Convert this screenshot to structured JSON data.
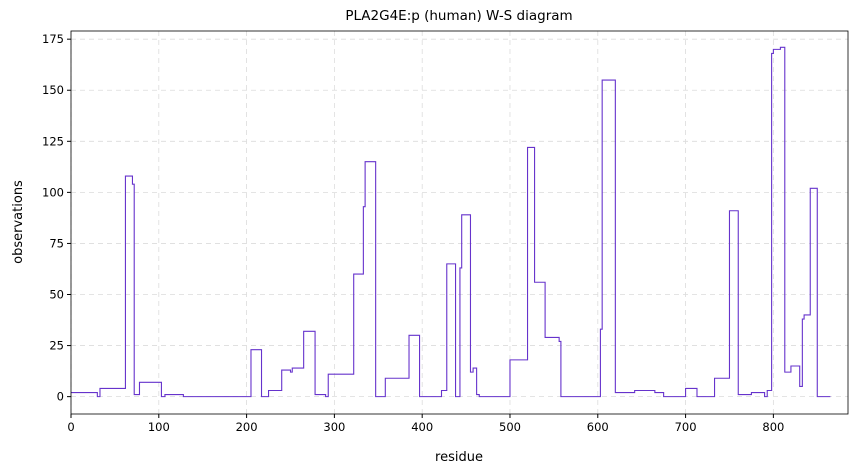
{
  "chart_data": {
    "type": "line",
    "title": "PLA2G4E:p (human) W-S diagram",
    "x_label": "residue",
    "y_label": "observations",
    "series": [
      {
        "name": "PLA2G4E:p",
        "color": "#6633cc",
        "x": [
          0,
          30,
          30,
          33,
          33,
          62,
          62,
          70,
          70,
          72,
          72,
          78,
          78,
          103,
          103,
          107,
          107,
          128,
          128,
          205,
          205,
          217,
          217,
          225,
          225,
          240,
          240,
          250,
          250,
          252,
          252,
          265,
          265,
          278,
          278,
          290,
          290,
          293,
          293,
          322,
          322,
          333,
          333,
          335,
          335,
          347,
          347,
          358,
          358,
          385,
          385,
          397,
          397,
          422,
          422,
          428,
          428,
          438,
          438,
          443,
          443,
          445,
          445,
          455,
          455,
          458,
          458,
          462,
          462,
          465,
          465,
          500,
          500,
          520,
          520,
          528,
          528,
          540,
          540,
          556,
          556,
          558,
          558,
          603,
          603,
          605,
          605,
          620,
          620,
          642,
          642,
          665,
          665,
          675,
          675,
          700,
          700,
          713,
          713,
          733,
          733,
          750,
          750,
          760,
          760,
          775,
          775,
          790,
          790,
          793,
          793,
          798,
          798,
          800,
          800,
          808,
          808,
          813,
          813,
          820,
          820,
          830,
          830,
          833,
          833,
          835,
          835,
          842,
          842,
          850,
          850,
          865
        ],
        "values": [
          2,
          2,
          0,
          0,
          4,
          4,
          108,
          108,
          104,
          104,
          1,
          1,
          7,
          7,
          0,
          0,
          1,
          1,
          0,
          0,
          23,
          23,
          0,
          0,
          3,
          3,
          13,
          13,
          12,
          12,
          14,
          14,
          32,
          32,
          1,
          1,
          0,
          0,
          11,
          11,
          60,
          60,
          93,
          93,
          115,
          115,
          0,
          0,
          9,
          9,
          30,
          30,
          0,
          0,
          3,
          3,
          65,
          65,
          0,
          0,
          63,
          63,
          89,
          89,
          12,
          12,
          14,
          14,
          1,
          1,
          0,
          0,
          18,
          18,
          122,
          122,
          56,
          56,
          29,
          29,
          27,
          27,
          0,
          0,
          33,
          33,
          155,
          155,
          2,
          2,
          3,
          3,
          2,
          2,
          0,
          0,
          4,
          4,
          0,
          0,
          9,
          9,
          91,
          91,
          1,
          1,
          2,
          2,
          0,
          0,
          3,
          3,
          168,
          168,
          170,
          170,
          171,
          171,
          12,
          12,
          15,
          15,
          5,
          5,
          38,
          38,
          40,
          40,
          102,
          102,
          0,
          0
        ]
      }
    ],
    "xlim": [
      0,
      885
    ],
    "ylim": [
      -8.5,
      179
    ],
    "xticks": [
      0,
      100,
      200,
      300,
      400,
      500,
      600,
      700,
      800
    ],
    "yticks": [
      0,
      25,
      50,
      75,
      100,
      125,
      150,
      175
    ],
    "grid": true
  }
}
